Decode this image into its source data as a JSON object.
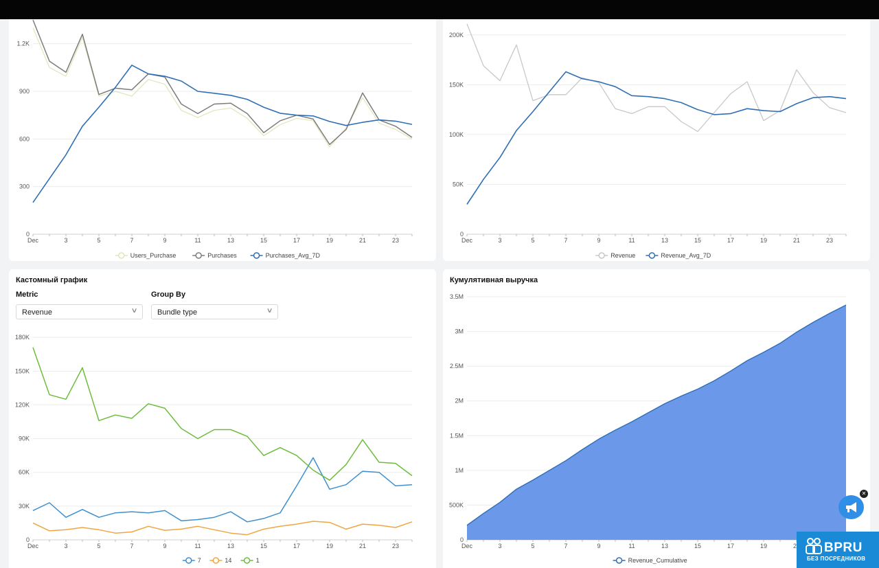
{
  "x_ticks": [
    "Dec",
    "3",
    "5",
    "7",
    "9",
    "11",
    "13",
    "15",
    "17",
    "19",
    "21",
    "23"
  ],
  "chart_data": [
    {
      "id": "purchases",
      "type": "line",
      "title": "",
      "ylim": [
        0,
        1350
      ],
      "yticks": [
        0,
        300,
        600,
        900,
        1200
      ],
      "ytick_labels": [
        "0",
        "300",
        "600",
        "900",
        "1.2K"
      ],
      "legend_position": "bottom",
      "grid": true,
      "series": [
        {
          "name": "Users_Purchase",
          "color": "#dfe6b8",
          "width": 1.2,
          "values": [
            1300,
            1050,
            995,
            1240,
            870,
            900,
            870,
            975,
            945,
            780,
            735,
            780,
            795,
            730,
            620,
            690,
            730,
            715,
            550,
            670,
            860,
            700,
            660,
            600
          ]
        },
        {
          "name": "Purchases",
          "color": "#7c7c7c",
          "width": 1.5,
          "values": [
            1350,
            1090,
            1020,
            1260,
            880,
            920,
            910,
            1010,
            990,
            820,
            760,
            820,
            825,
            760,
            640,
            715,
            750,
            725,
            565,
            660,
            890,
            720,
            680,
            610
          ]
        },
        {
          "name": "Purchases_Avg_7D",
          "color": "#2e6eb5",
          "width": 1.6,
          "values": [
            200,
            350,
            500,
            680,
            800,
            925,
            1065,
            1010,
            995,
            965,
            900,
            888,
            875,
            850,
            800,
            762,
            750,
            745,
            710,
            685,
            705,
            720,
            712,
            692
          ]
        }
      ]
    },
    {
      "id": "revenue",
      "type": "line",
      "title": "",
      "ylim": [
        0,
        215000
      ],
      "yticks": [
        0,
        50000,
        100000,
        150000,
        200000
      ],
      "ytick_labels": [
        "0",
        "50K",
        "100K",
        "150K",
        "200K"
      ],
      "legend_position": "bottom",
      "grid": true,
      "series": [
        {
          "name": "Revenue",
          "color": "#c8c8c8",
          "width": 1.3,
          "values": [
            211000,
            169000,
            154000,
            190000,
            134000,
            140000,
            140000,
            157000,
            152000,
            126000,
            121000,
            128000,
            128000,
            113000,
            103000,
            122000,
            141000,
            153000,
            114000,
            124000,
            165000,
            142000,
            127000,
            122000
          ]
        },
        {
          "name": "Revenue_Avg_7D",
          "color": "#2e6eb5",
          "width": 1.6,
          "values": [
            30000,
            55000,
            77000,
            104000,
            123000,
            143000,
            163000,
            156000,
            153000,
            148000,
            139000,
            138000,
            136000,
            132000,
            125000,
            120000,
            121000,
            126000,
            124000,
            123000,
            131000,
            137000,
            138000,
            136000
          ]
        }
      ]
    },
    {
      "id": "custom",
      "type": "line",
      "title": "Кастомный график",
      "ylim": [
        0,
        185000
      ],
      "yticks": [
        0,
        30000,
        60000,
        90000,
        120000,
        150000,
        180000
      ],
      "ytick_labels": [
        "0",
        "30K",
        "60K",
        "90K",
        "120K",
        "150K",
        "180K"
      ],
      "legend_position": "bottom",
      "grid": true,
      "series": [
        {
          "name": "7",
          "color": "#3e8fcf",
          "width": 1.5,
          "values": [
            26000,
            33000,
            20000,
            27000,
            20000,
            24000,
            25000,
            24000,
            26000,
            17000,
            18000,
            20000,
            25000,
            16000,
            19000,
            24000,
            48000,
            73000,
            45000,
            49000,
            61000,
            60000,
            48000,
            49000
          ]
        },
        {
          "name": "14",
          "color": "#f0a640",
          "width": 1.5,
          "values": [
            15000,
            8000,
            9000,
            11000,
            9000,
            6000,
            7000,
            12000,
            8500,
            9500,
            12000,
            9000,
            6000,
            4500,
            9500,
            12000,
            14000,
            16500,
            15500,
            9500,
            14000,
            13000,
            11000,
            16000
          ]
        },
        {
          "name": "1",
          "color": "#6dbd3c",
          "width": 1.5,
          "values": [
            171000,
            129000,
            125000,
            153000,
            106000,
            111000,
            108000,
            121000,
            117000,
            99000,
            90000,
            98000,
            98000,
            92000,
            75000,
            82000,
            75000,
            62000,
            53000,
            67000,
            89000,
            69000,
            68000,
            57000
          ]
        }
      ]
    },
    {
      "id": "cumulative",
      "type": "area",
      "title": "Кумулятивная выручка",
      "ylim": [
        0,
        3500000
      ],
      "yticks": [
        0,
        500000,
        1000000,
        1500000,
        2000000,
        2500000,
        3000000,
        3500000
      ],
      "ytick_labels": [
        "0",
        "500K",
        "1M",
        "1.5M",
        "2M",
        "2.5M",
        "3M",
        "3.5M"
      ],
      "legend_position": "bottom",
      "grid": true,
      "series": [
        {
          "name": "Revenue_Cumulative",
          "color": "#2e6eb5",
          "fill": "#6b98e8",
          "width": 1.4,
          "values": [
            210000,
            380000,
            540000,
            730000,
            860000,
            1000000,
            1140000,
            1300000,
            1450000,
            1580000,
            1700000,
            1830000,
            1960000,
            2070000,
            2170000,
            2290000,
            2430000,
            2580000,
            2700000,
            2830000,
            2990000,
            3130000,
            3260000,
            3380000
          ]
        }
      ]
    }
  ],
  "controls": {
    "metric_label": "Metric",
    "metric_value": "Revenue",
    "group_label": "Group By",
    "group_value": "Bundle type"
  },
  "badge": {
    "main": "BPRU",
    "sub": "БЕЗ ПОСРЕДНИКОВ"
  }
}
